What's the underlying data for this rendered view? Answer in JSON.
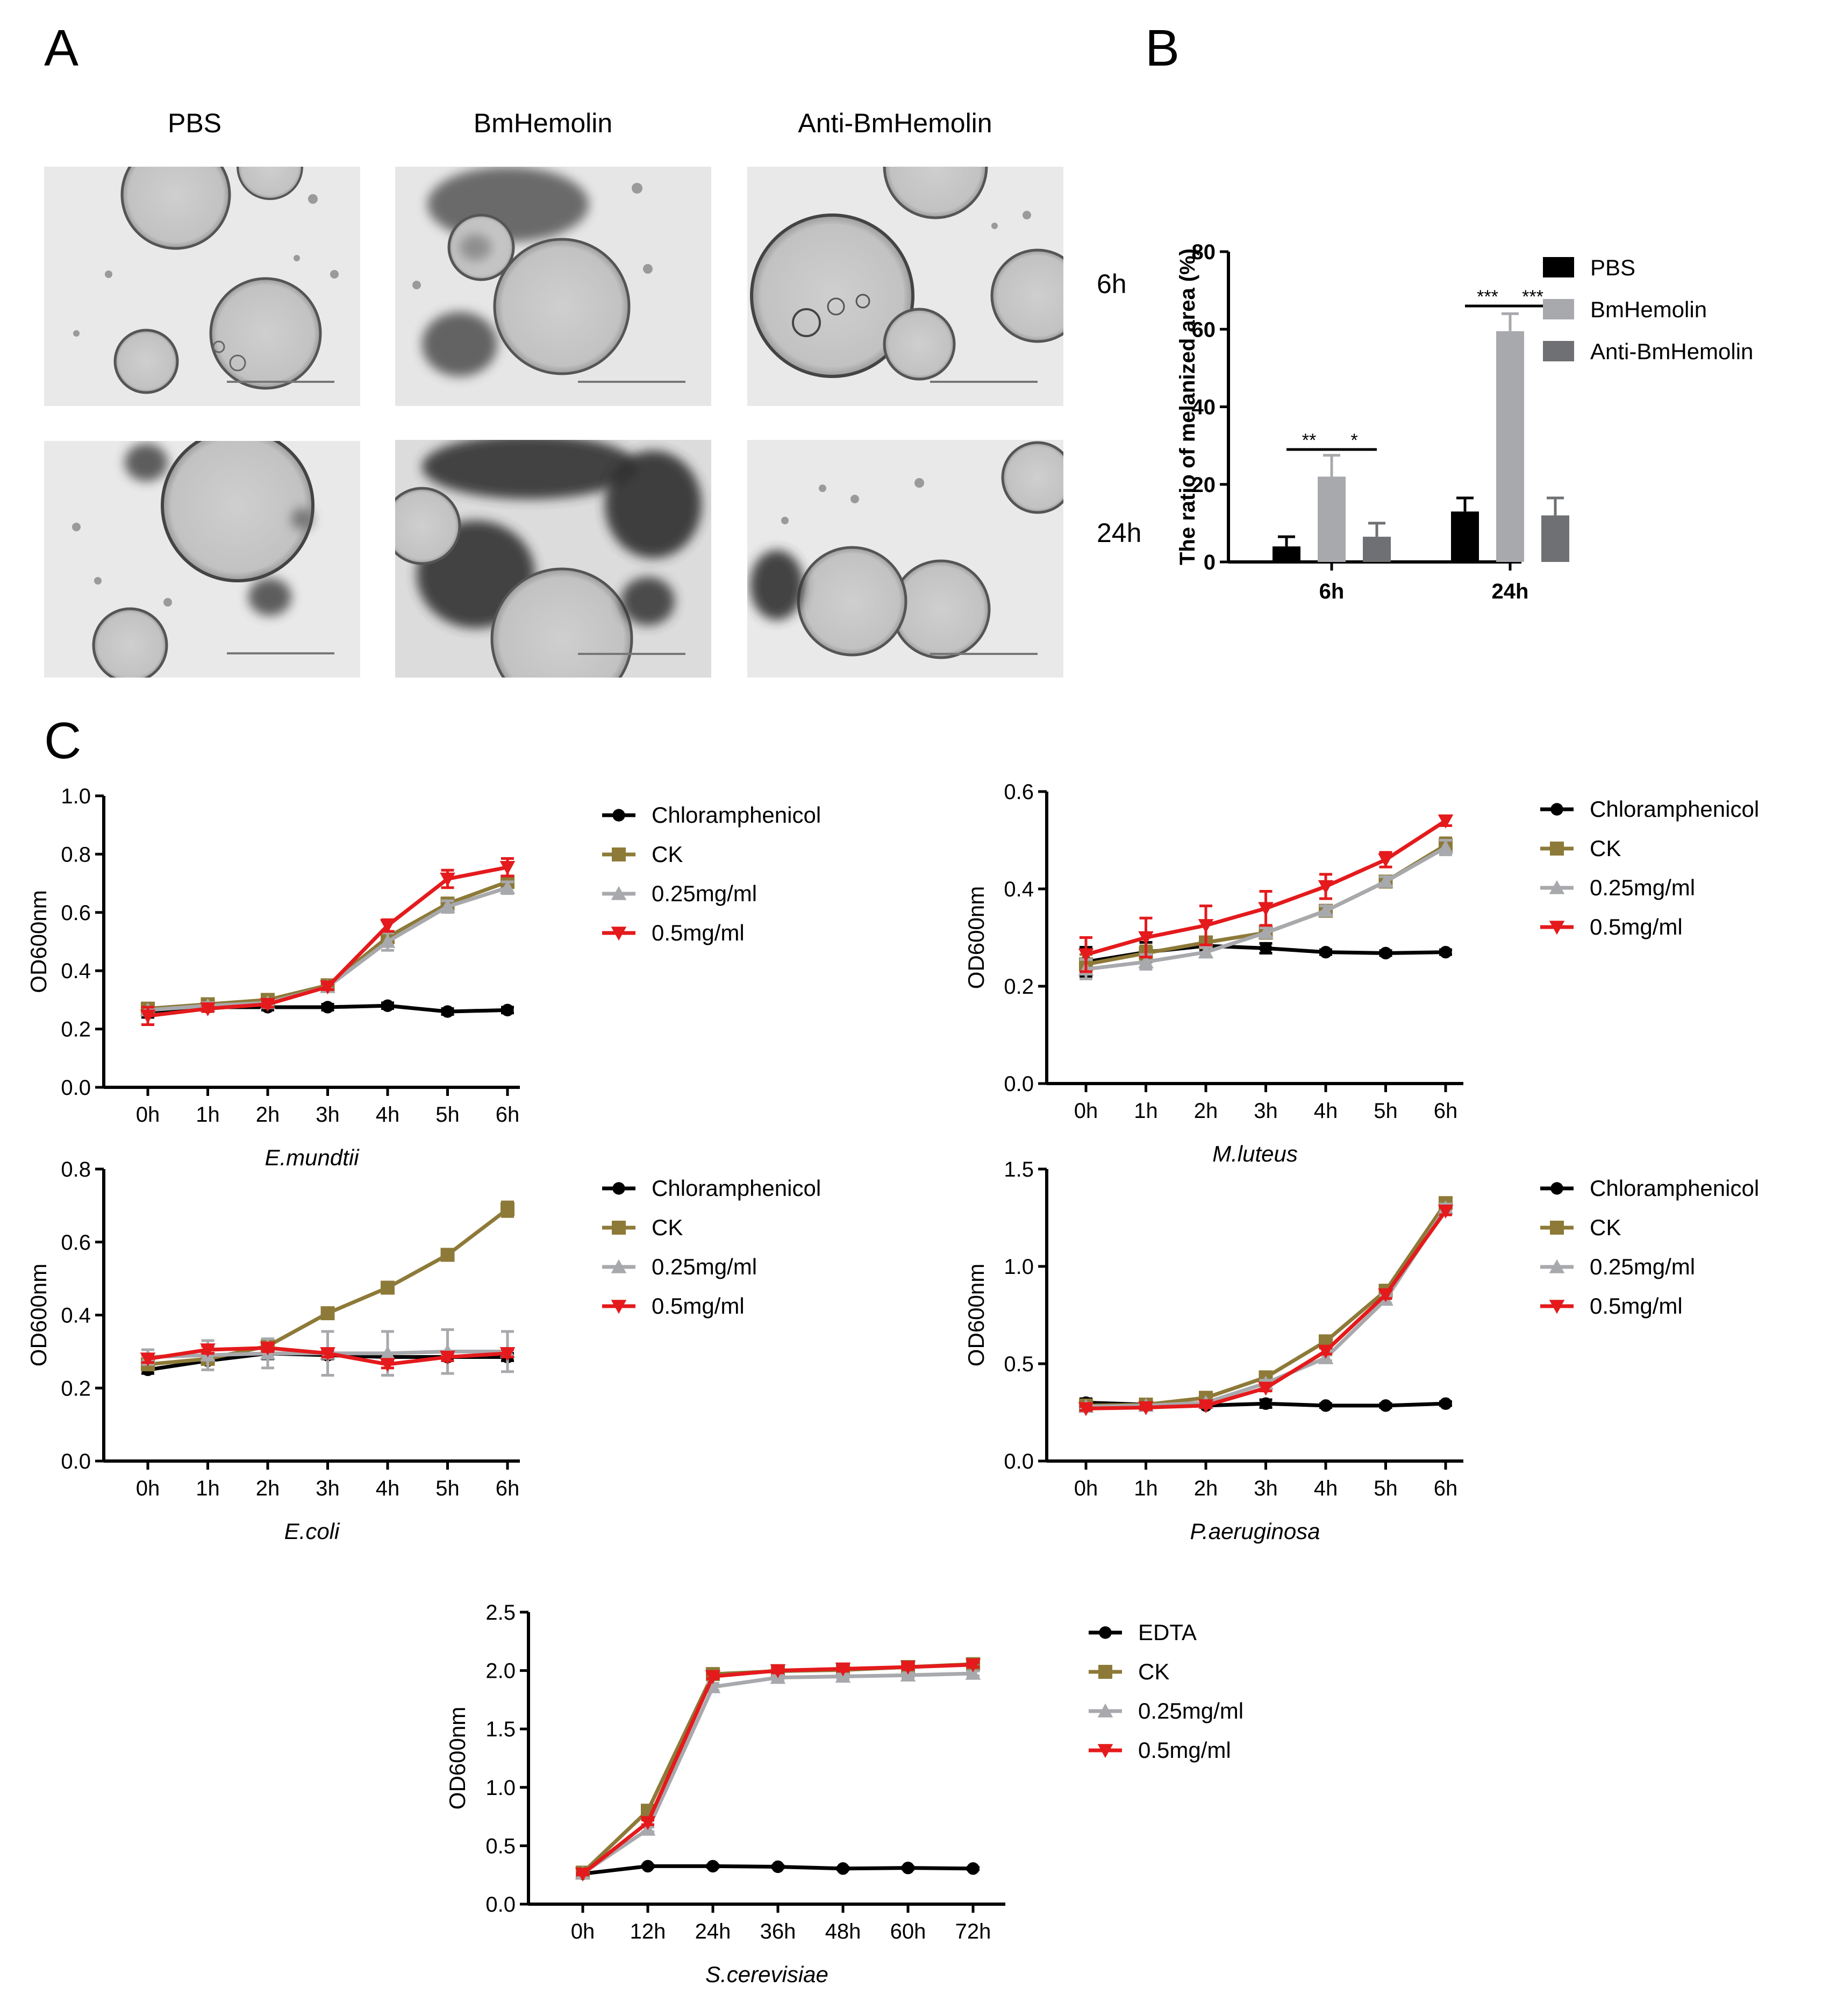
{
  "panel_labels": {
    "a": "A",
    "b": "B",
    "c": "C"
  },
  "panel_a": {
    "columns": [
      "PBS",
      "BmHemolin",
      "Anti-BmHemolin"
    ],
    "rows": [
      "6h",
      "24h"
    ]
  },
  "chart_data": [
    {
      "id": "B",
      "type": "bar",
      "categories": [
        "6h",
        "24h"
      ],
      "series": [
        {
          "name": "PBS",
          "values": [
            4,
            13
          ],
          "errors": [
            2.5,
            3.5
          ],
          "color": "#000000"
        },
        {
          "name": "BmHemolin",
          "values": [
            22,
            59.5
          ],
          "errors": [
            5.5,
            4.5
          ],
          "color": "#a8a9ad"
        },
        {
          "name": "Anti-BmHemolin",
          "values": [
            6.5,
            12
          ],
          "errors": [
            3.5,
            4.5
          ],
          "color": "#6f7073"
        }
      ],
      "ylabel": "The ratio of melanized area (%)",
      "xlabel": "",
      "ylim": [
        0,
        80
      ],
      "yticks": [
        0,
        20,
        40,
        60,
        80
      ],
      "significance": [
        {
          "category": 0,
          "from": 0,
          "to": 1,
          "label": "**",
          "level": 29
        },
        {
          "category": 0,
          "from": 1,
          "to": 2,
          "label": "*",
          "level": 29
        },
        {
          "category": 1,
          "from": 0,
          "to": 1,
          "label": "***",
          "level": 66
        },
        {
          "category": 1,
          "from": 1,
          "to": 2,
          "label": "***",
          "level": 66
        }
      ]
    },
    {
      "id": "C1",
      "type": "line",
      "title": "E.mundtii",
      "ylabel": "OD600nm",
      "categories": [
        "0h",
        "1h",
        "2h",
        "3h",
        "4h",
        "5h",
        "6h"
      ],
      "ylim": [
        0,
        1.0
      ],
      "yticks": [
        "0.0",
        "0.2",
        "0.4",
        "0.6",
        "0.8",
        "1.0"
      ],
      "series": [
        {
          "name": "Chloramphenicol",
          "color": "#000000",
          "marker": "circle",
          "values": [
            0.26,
            0.275,
            0.275,
            0.275,
            0.28,
            0.26,
            0.265
          ],
          "errors": [
            0.02,
            0.01,
            0.01,
            0.01,
            0.01,
            0.01,
            0.01
          ]
        },
        {
          "name": "CK",
          "color": "#8d7a38",
          "marker": "square",
          "values": [
            0.27,
            0.285,
            0.3,
            0.35,
            0.515,
            0.63,
            0.705
          ],
          "errors": [
            0.01,
            0.01,
            0.01,
            0.01,
            0.02,
            0.02,
            0.02
          ]
        },
        {
          "name": "0.25mg/ml",
          "color": "#a8a9ad",
          "marker": "triangle-up",
          "values": [
            0.265,
            0.28,
            0.29,
            0.345,
            0.5,
            0.62,
            0.685
          ],
          "errors": [
            0.01,
            0.01,
            0.01,
            0.01,
            0.03,
            0.02,
            0.02
          ]
        },
        {
          "name": "0.5mg/ml",
          "color": "#e41a1c",
          "marker": "triangle-down",
          "values": [
            0.245,
            0.27,
            0.285,
            0.345,
            0.555,
            0.715,
            0.755
          ],
          "errors": [
            0.03,
            0.01,
            0.01,
            0.01,
            0.02,
            0.03,
            0.03
          ]
        }
      ]
    },
    {
      "id": "C2",
      "type": "line",
      "title": "M.luteus",
      "ylabel": "OD600nm",
      "categories": [
        "0h",
        "1h",
        "2h",
        "3h",
        "4h",
        "5h",
        "6h"
      ],
      "ylim": [
        0,
        0.6
      ],
      "yticks": [
        "0.0",
        "0.2",
        "0.4",
        "0.6"
      ],
      "series": [
        {
          "name": "Chloramphenicol",
          "color": "#000000",
          "marker": "circle",
          "values": [
            0.25,
            0.27,
            0.283,
            0.278,
            0.27,
            0.268,
            0.27
          ],
          "errors": [
            0.03,
            0.02,
            0.01,
            0.01,
            0.005,
            0.005,
            0.005
          ]
        },
        {
          "name": "CK",
          "color": "#8d7a38",
          "marker": "square",
          "values": [
            0.245,
            0.268,
            0.29,
            0.31,
            0.355,
            0.415,
            0.49
          ],
          "errors": [
            0.02,
            0.015,
            0.01,
            0.01,
            0.01,
            0.01,
            0.015
          ]
        },
        {
          "name": "0.25mg/ml",
          "color": "#a8a9ad",
          "marker": "triangle-up",
          "values": [
            0.235,
            0.25,
            0.27,
            0.31,
            0.355,
            0.415,
            0.485
          ],
          "errors": [
            0.02,
            0.015,
            0.01,
            0.01,
            0.01,
            0.01,
            0.015
          ]
        },
        {
          "name": "0.5mg/ml",
          "color": "#e41a1c",
          "marker": "triangle-down",
          "values": [
            0.265,
            0.3,
            0.325,
            0.36,
            0.405,
            0.46,
            0.54
          ],
          "errors": [
            0.035,
            0.04,
            0.04,
            0.035,
            0.025,
            0.015,
            0.01
          ]
        }
      ]
    },
    {
      "id": "C3",
      "type": "line",
      "title": "E.coli",
      "ylabel": "OD600nm",
      "categories": [
        "0h",
        "1h",
        "2h",
        "3h",
        "4h",
        "5h",
        "6h"
      ],
      "ylim": [
        0,
        0.8
      ],
      "yticks": [
        "0.0",
        "0.2",
        "0.4",
        "0.6",
        "0.8"
      ],
      "series": [
        {
          "name": "Chloramphenicol",
          "color": "#000000",
          "marker": "circle",
          "values": [
            0.25,
            0.275,
            0.295,
            0.29,
            0.285,
            0.285,
            0.285
          ],
          "errors": [
            0.01,
            0.01,
            0.015,
            0.01,
            0.01,
            0.01,
            0.01
          ]
        },
        {
          "name": "CK",
          "color": "#8d7a38",
          "marker": "square",
          "values": [
            0.265,
            0.28,
            0.315,
            0.405,
            0.475,
            0.565,
            0.69
          ],
          "errors": [
            0.01,
            0.01,
            0.01,
            0.01,
            0.01,
            0.015,
            0.02
          ]
        },
        {
          "name": "0.25mg/ml",
          "color": "#a8a9ad",
          "marker": "triangle-up",
          "values": [
            0.285,
            0.29,
            0.295,
            0.295,
            0.295,
            0.3,
            0.3
          ],
          "errors": [
            0.02,
            0.04,
            0.04,
            0.06,
            0.06,
            0.06,
            0.055
          ]
        },
        {
          "name": "0.5mg/ml",
          "color": "#e41a1c",
          "marker": "triangle-down",
          "values": [
            0.28,
            0.305,
            0.31,
            0.295,
            0.265,
            0.285,
            0.295
          ],
          "errors": [
            0.01,
            0.01,
            0.01,
            0.01,
            0.01,
            0.01,
            0.01
          ]
        }
      ]
    },
    {
      "id": "C4",
      "type": "line",
      "title": "P.aeruginosa",
      "ylabel": "OD600nm",
      "categories": [
        "0h",
        "1h",
        "2h",
        "3h",
        "4h",
        "5h",
        "6h"
      ],
      "ylim": [
        0,
        1.5
      ],
      "yticks": [
        "0.0",
        "0.5",
        "1.0",
        "1.5"
      ],
      "series": [
        {
          "name": "Chloramphenicol",
          "color": "#000000",
          "marker": "circle",
          "values": [
            0.3,
            0.29,
            0.285,
            0.295,
            0.285,
            0.285,
            0.295
          ],
          "errors": [
            0.02,
            0.015,
            0.01,
            0.02,
            0.01,
            0.01,
            0.01
          ]
        },
        {
          "name": "CK",
          "color": "#8d7a38",
          "marker": "square",
          "values": [
            0.285,
            0.29,
            0.325,
            0.43,
            0.615,
            0.875,
            1.325
          ],
          "errors": [
            0.01,
            0.01,
            0.01,
            0.015,
            0.015,
            0.02,
            0.02
          ]
        },
        {
          "name": "0.25mg/ml",
          "color": "#a8a9ad",
          "marker": "triangle-up",
          "values": [
            0.28,
            0.285,
            0.3,
            0.4,
            0.53,
            0.83,
            1.3
          ],
          "errors": [
            0.01,
            0.01,
            0.01,
            0.015,
            0.015,
            0.02,
            0.02
          ]
        },
        {
          "name": "0.5mg/ml",
          "color": "#e41a1c",
          "marker": "triangle-down",
          "values": [
            0.27,
            0.275,
            0.285,
            0.375,
            0.565,
            0.855,
            1.285
          ],
          "errors": [
            0.01,
            0.01,
            0.01,
            0.015,
            0.015,
            0.02,
            0.02
          ]
        }
      ]
    },
    {
      "id": "C5",
      "type": "line",
      "title": "S.cerevisiae",
      "ylabel": "OD600nm",
      "categories": [
        "0h",
        "12h",
        "24h",
        "36h",
        "48h",
        "60h",
        "72h"
      ],
      "ylim": [
        0,
        2.5
      ],
      "yticks": [
        "0.0",
        "0.5",
        "1.0",
        "1.5",
        "2.0",
        "2.5"
      ],
      "series": [
        {
          "name": "EDTA",
          "color": "#000000",
          "marker": "circle",
          "values": [
            0.26,
            0.325,
            0.325,
            0.32,
            0.305,
            0.31,
            0.305
          ],
          "errors": [
            0.02,
            0.01,
            0.01,
            0.01,
            0.01,
            0.01,
            0.01
          ]
        },
        {
          "name": "CK",
          "color": "#8d7a38",
          "marker": "square",
          "values": [
            0.27,
            0.8,
            1.97,
            1.995,
            2.005,
            2.03,
            2.055
          ],
          "errors": [
            0.01,
            0.02,
            0.02,
            0.02,
            0.02,
            0.02,
            0.02
          ]
        },
        {
          "name": "0.25mg/ml",
          "color": "#a8a9ad",
          "marker": "triangle-up",
          "values": [
            0.265,
            0.64,
            1.86,
            1.94,
            1.95,
            1.96,
            1.975
          ],
          "errors": [
            0.01,
            0.02,
            0.03,
            0.02,
            0.02,
            0.02,
            0.02
          ]
        },
        {
          "name": "0.5mg/ml",
          "color": "#e41a1c",
          "marker": "triangle-down",
          "values": [
            0.26,
            0.7,
            1.95,
            2.0,
            2.015,
            2.03,
            2.05
          ],
          "errors": [
            0.01,
            0.02,
            0.02,
            0.02,
            0.02,
            0.02,
            0.02
          ]
        }
      ]
    }
  ]
}
